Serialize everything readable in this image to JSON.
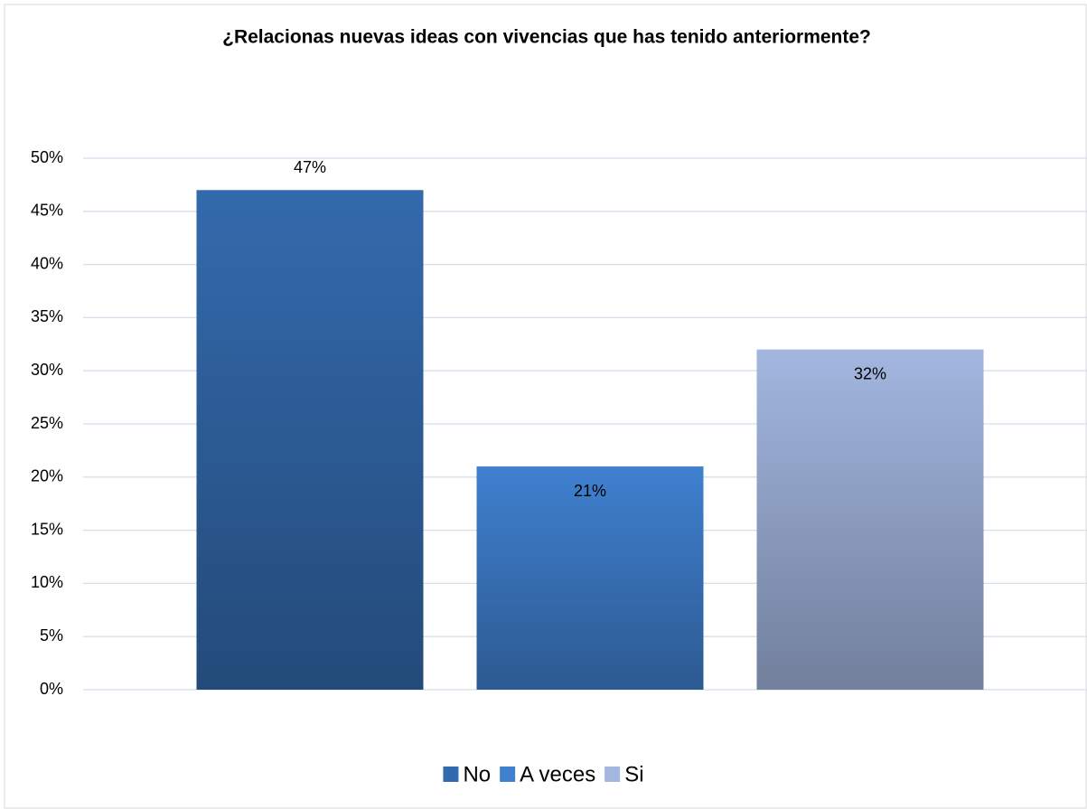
{
  "chart_data": {
    "type": "bar",
    "title": "¿Relacionas nuevas ideas con vivencias que has tenido anteriormente?",
    "categories": [
      null
    ],
    "series": [
      {
        "name": "No",
        "color": "#336aad",
        "values": [
          47
        ],
        "value_labels": [
          "47%"
        ]
      },
      {
        "name": "A veces",
        "color": "#3f80cf",
        "values": [
          21
        ],
        "value_labels": [
          "21%"
        ]
      },
      {
        "name": "Si",
        "color": "#a2b6df",
        "values": [
          32
        ],
        "value_labels": [
          "32%"
        ]
      }
    ],
    "ylim": [
      0,
      50
    ],
    "yticks": [
      {
        "value": 0,
        "label": "0%"
      },
      {
        "value": 5,
        "label": "5%"
      },
      {
        "value": 10,
        "label": "10%"
      },
      {
        "value": 15,
        "label": "15%"
      },
      {
        "value": 20,
        "label": "20%"
      },
      {
        "value": 25,
        "label": "25%"
      },
      {
        "value": 30,
        "label": "30%"
      },
      {
        "value": 35,
        "label": "35%"
      },
      {
        "value": 40,
        "label": "40%"
      },
      {
        "value": 45,
        "label": "45%"
      },
      {
        "value": 50,
        "label": "50%"
      }
    ],
    "grid": true,
    "legend": "bottom"
  }
}
